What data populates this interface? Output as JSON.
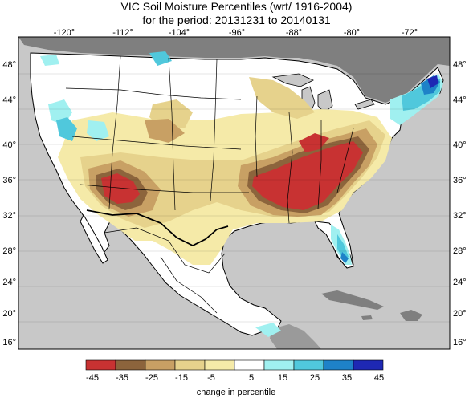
{
  "title": {
    "line1": "VIC Soil Moisture Percentiles (wrt/ 1916-2004)",
    "line2": "for the period:   20131231  to  20140131"
  },
  "map": {
    "lon_labels": [
      "-120°",
      "-112°",
      "-104°",
      "-96°",
      "-88°",
      "-80°",
      "-72°"
    ],
    "lat_labels": [
      "48°",
      "44°",
      "40°",
      "36°",
      "32°",
      "28°",
      "24°",
      "20°",
      "16°"
    ],
    "ocean_color": "#c8c8c8",
    "land_outside_color": "#7f7f7f",
    "no_change_color": "#ffffff"
  },
  "colorbar": {
    "labels": [
      "-45",
      "-35",
      "-25",
      "-15",
      "-5",
      "5",
      "15",
      "25",
      "35",
      "45"
    ],
    "colors": [
      "#c83232",
      "#8c643c",
      "#c8a064",
      "#e6d28c",
      "#f5eaa8",
      "#ffffff",
      "#a0f0f0",
      "#50c8dc",
      "#1e82c8",
      "#1e28b4"
    ],
    "caption": "change in percentile"
  }
}
